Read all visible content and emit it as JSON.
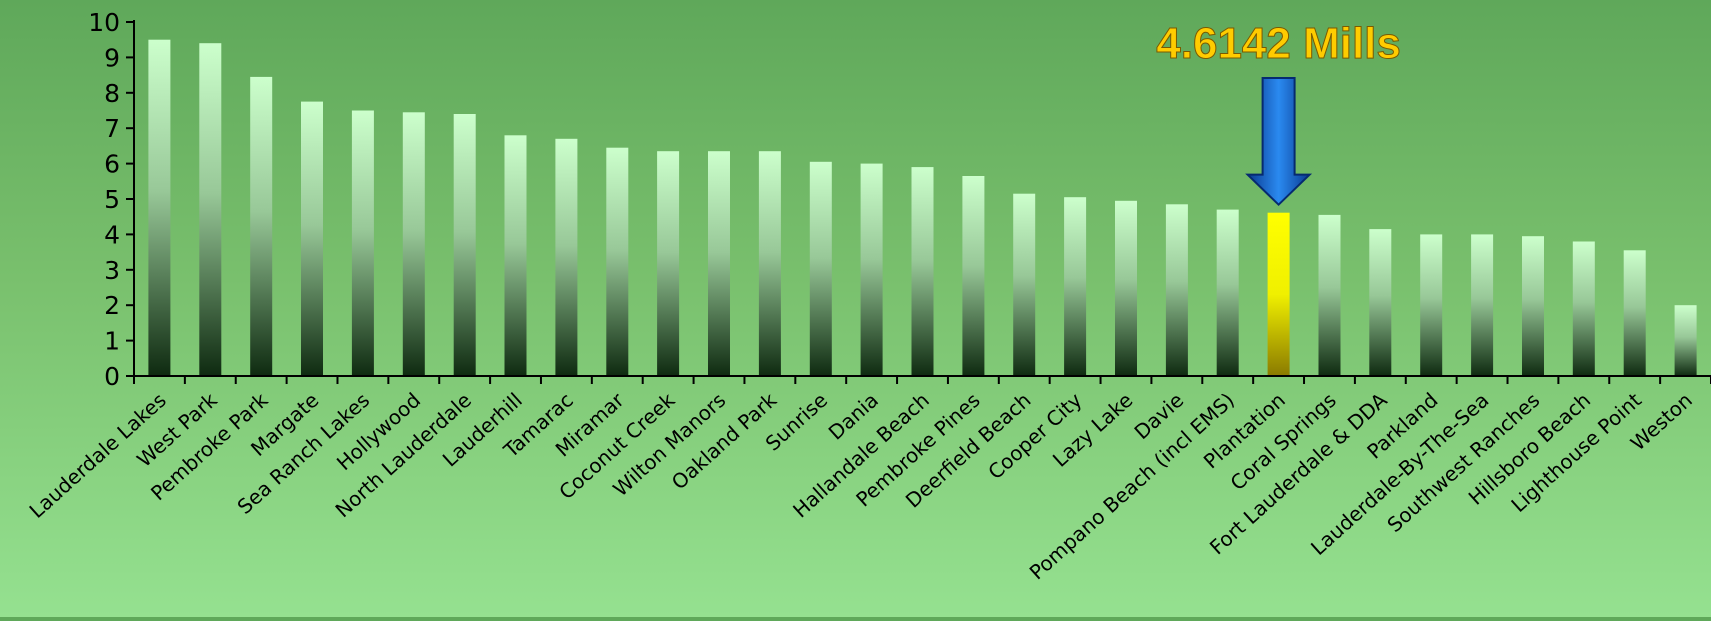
{
  "chart_data": {
    "type": "bar",
    "title": "",
    "xlabel": "",
    "ylabel": "",
    "ylim": [
      0,
      10
    ],
    "yticks": [
      0,
      1,
      2,
      3,
      4,
      5,
      6,
      7,
      8,
      9,
      10
    ],
    "categories": [
      "Lauderdale Lakes",
      "West Park",
      "Pembroke Park",
      "Margate",
      "Sea Ranch Lakes",
      "Hollywood",
      "North Lauderdale",
      "Lauderhill",
      "Tamarac",
      "Miramar",
      "Coconut Creek",
      "Wilton Manors",
      "Oakland Park",
      "Sunrise",
      "Dania",
      "Hallandale Beach",
      "Pembroke Pines",
      "Deerfield Beach",
      "Cooper City",
      "Lazy Lake",
      "Davie",
      "Pompano Beach (incl EMS)",
      "Plantation",
      "Coral Springs",
      "Fort Lauderdale & DDA",
      "Parkland",
      "Lauderdale-By-The-Sea",
      "Southwest Ranches",
      "Hillsboro Beach",
      "Lighthouse Point",
      "Weston"
    ],
    "values": [
      9.5,
      9.4,
      8.45,
      7.75,
      7.5,
      7.45,
      7.4,
      6.8,
      6.7,
      6.45,
      6.35,
      6.35,
      6.35,
      6.05,
      6.0,
      5.9,
      5.65,
      5.15,
      5.05,
      4.95,
      4.85,
      4.7,
      4.6142,
      4.55,
      4.15,
      4.0,
      4.0,
      3.95,
      3.8,
      3.55,
      2.0
    ],
    "highlight_index": 22,
    "grid": false,
    "legend": "none",
    "annotation": {
      "text": "4.6142 Mills",
      "color": "#ffcc00",
      "arrow_color": "#1a5fc0"
    },
    "colors": {
      "bar_top": "#ccffcc",
      "bar_bottom": "#0e2a10",
      "highlight_top": "#ffff00",
      "highlight_bottom": "#8a7a00"
    }
  }
}
